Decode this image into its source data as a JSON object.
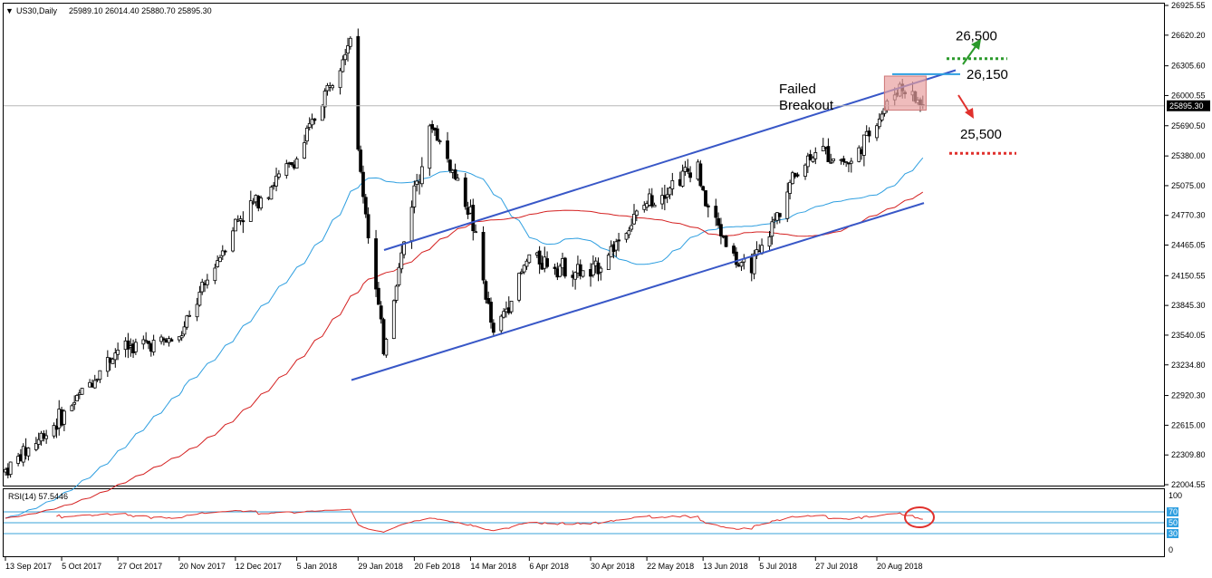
{
  "header": {
    "symbol": "US30,Daily",
    "ohlc": "25989.10 26014.40 25880.70 25895.30"
  },
  "chart_data": {
    "type": "candlestick",
    "price_axis": {
      "ticks": [
        "26925.55",
        "26620.20",
        "26305.60",
        "26000.55",
        "25690.50",
        "25380.00",
        "25075.00",
        "24770.30",
        "24465.05",
        "24150.55",
        "23845.30",
        "23540.05",
        "23234.80",
        "22920.30",
        "22615.00",
        "22309.80",
        "22004.55"
      ],
      "ylim": [
        22004.55,
        26925.55
      ],
      "current_price": "25895.30"
    },
    "date_axis": [
      "13 Sep 2017",
      "5 Oct 2017",
      "27 Oct 2017",
      "20 Nov 2017",
      "12 Dec 2017",
      "5 Jan 2018",
      "29 Jan 2018",
      "20 Feb 2018",
      "14 Mar 2018",
      "6 Apr 2018",
      "30 Apr 2018",
      "22 May 2018",
      "13 Jun 2018",
      "5 Jul 2018",
      "27 Jul 2018",
      "20 Aug 2018"
    ],
    "price_path": [
      {
        "date": "13 Sep 2017",
        "close": 22150
      },
      {
        "date": "5 Oct 2017",
        "close": 22700
      },
      {
        "date": "27 Oct 2017",
        "close": 23400
      },
      {
        "date": "20 Nov 2017",
        "close": 23500
      },
      {
        "date": "12 Dec 2017",
        "close": 24700
      },
      {
        "date": "5 Jan 2018",
        "close": 25350
      },
      {
        "date": "26 Jan 2018",
        "close": 26620
      },
      {
        "date": "29 Jan 2018",
        "close": 25400
      },
      {
        "date": "8 Feb 2018",
        "close": 23400
      },
      {
        "date": "20 Feb 2018",
        "close": 25050
      },
      {
        "date": "27 Feb 2018",
        "close": 25700
      },
      {
        "date": "14 Mar 2018",
        "close": 24800
      },
      {
        "date": "23 Mar 2018",
        "close": 23530
      },
      {
        "date": "6 Apr 2018",
        "close": 24350
      },
      {
        "date": "30 Apr 2018",
        "close": 24150
      },
      {
        "date": "22 May 2018",
        "close": 24900
      },
      {
        "date": "11 Jun 2018",
        "close": 25300
      },
      {
        "date": "13 Jun 2018",
        "close": 24950
      },
      {
        "date": "28 Jun 2018",
        "close": 24200
      },
      {
        "date": "5 Jul 2018",
        "close": 24350
      },
      {
        "date": "18 Jul 2018",
        "close": 25150
      },
      {
        "date": "27 Jul 2018",
        "close": 25450
      },
      {
        "date": "10 Aug 2018",
        "close": 25300
      },
      {
        "date": "20 Aug 2018",
        "close": 25750
      },
      {
        "date": "29 Aug 2018",
        "close": 26100
      },
      {
        "date": "7 Sep 2018",
        "close": 25895
      }
    ],
    "annotations": {
      "failed_breakout": [
        "Failed",
        "Breakout"
      ],
      "target_up": "26,500",
      "resistance": "26,150",
      "target_down": "25,500"
    },
    "rsi": {
      "label": "RSI(14) 57.5446",
      "ticks": [
        "100",
        "70",
        "50",
        "30",
        "0"
      ],
      "levels": [
        70,
        50,
        30
      ]
    },
    "colors": {
      "channel": "#3857c7",
      "ma_fast": "#2f9fe0",
      "ma_slow": "#d42020",
      "rsi_line": "#e0302c",
      "target_up": "#2b9a2b",
      "target_down": "#e0302c",
      "highlight": "#e8a0a0"
    }
  }
}
